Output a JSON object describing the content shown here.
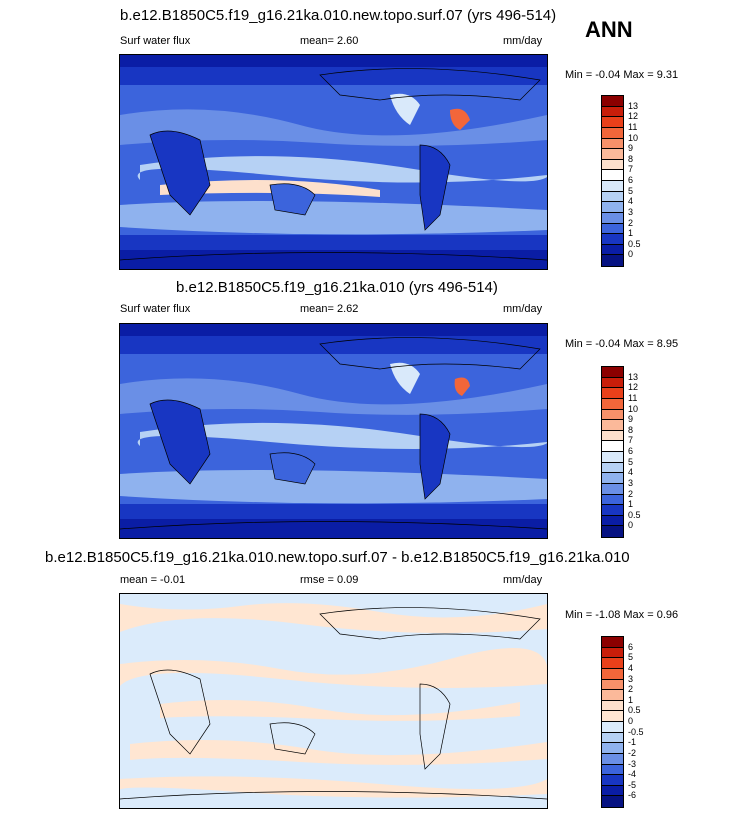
{
  "season": "ANN",
  "panels": [
    {
      "title": "b.e12.B1850C5.f19_g16.21ka.010.new.topo.surf.07 (yrs 496-514)",
      "left_text": "Surf water flux",
      "mid_text": "mean=   2.60",
      "units": "mm/day",
      "minmax": "Min =  -0.04 Max =   9.31",
      "colorbar_labels": [
        "13",
        "12",
        "11",
        "10",
        "9",
        "8",
        "7",
        "6",
        "5",
        "4",
        "3",
        "2",
        "1",
        "0.5",
        "0"
      ],
      "colorbar_colors": [
        "#8b0000",
        "#c81e0a",
        "#e9401a",
        "#f2663a",
        "#f7916a",
        "#fbb99a",
        "#fde0cc",
        "#ffffff",
        "#d9e9fa",
        "#b6d1f4",
        "#8fb2ee",
        "#6a8fe6",
        "#3c64dc",
        "#1836c2",
        "#0a1da5",
        "#061282"
      ]
    },
    {
      "title": "b.e12.B1850C5.f19_g16.21ka.010 (yrs 496-514)",
      "left_text": "Surf water flux",
      "mid_text": "mean=   2.62",
      "units": "mm/day",
      "minmax": "Min =  -0.04 Max =   8.95",
      "colorbar_labels": [
        "13",
        "12",
        "11",
        "10",
        "9",
        "8",
        "7",
        "6",
        "5",
        "4",
        "3",
        "2",
        "1",
        "0.5",
        "0"
      ],
      "colorbar_colors": [
        "#8b0000",
        "#c81e0a",
        "#e9401a",
        "#f2663a",
        "#f7916a",
        "#fbb99a",
        "#fde0cc",
        "#ffffff",
        "#d9e9fa",
        "#b6d1f4",
        "#8fb2ee",
        "#6a8fe6",
        "#3c64dc",
        "#1836c2",
        "#0a1da5",
        "#061282"
      ]
    },
    {
      "title": "b.e12.B1850C5.f19_g16.21ka.010.new.topo.surf.07 - b.e12.B1850C5.f19_g16.21ka.010",
      "left_text": "mean =  -0.01",
      "mid_text": "rmse =  0.09",
      "units": "mm/day",
      "minmax": "Min =  -1.08 Max =   0.96",
      "colorbar_labels": [
        "6",
        "5",
        "4",
        "3",
        "2",
        "1",
        "0.5",
        "0",
        "-0.5",
        "-1",
        "-2",
        "-3",
        "-4",
        "-5",
        "-6"
      ],
      "colorbar_colors": [
        "#8b0000",
        "#c81e0a",
        "#e9401a",
        "#f2663a",
        "#f7916a",
        "#fbb99a",
        "#fde0cc",
        "#ffe6d2",
        "#dbebfb",
        "#b6d1f4",
        "#8fb2ee",
        "#6a8fe6",
        "#3c64dc",
        "#1836c2",
        "#0a1da5",
        "#061282"
      ]
    }
  ]
}
